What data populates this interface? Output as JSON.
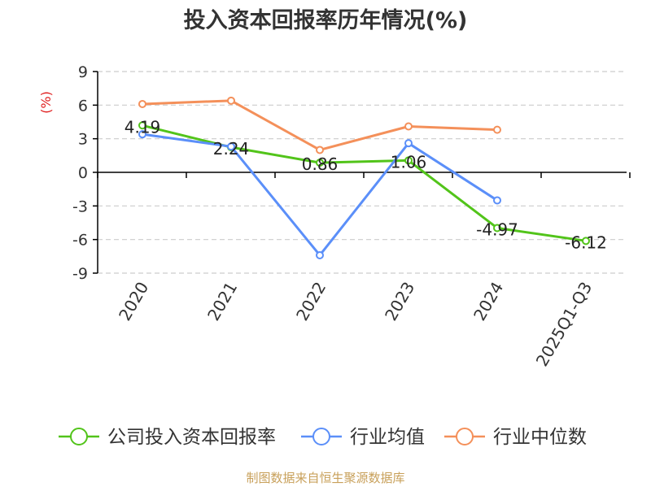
{
  "chart_data": {
    "type": "line",
    "title": "投入资本回报率历年情况(%)",
    "ylabel": "(%)",
    "categories": [
      "2020",
      "2021",
      "2022",
      "2023",
      "2024",
      "2025Q1-Q3"
    ],
    "ylim": [
      -9,
      9
    ],
    "yticks": [
      9,
      6,
      3,
      0,
      -3,
      -6,
      -9
    ],
    "ytick_labels": [
      "9",
      "6",
      "3",
      "0",
      "-3",
      "-6",
      "-9"
    ],
    "grid": true,
    "legend_position": "bottom",
    "series": [
      {
        "name": "公司投入资本回报率",
        "color": "#52c41a",
        "values": [
          4.19,
          2.24,
          0.86,
          1.06,
          -4.97,
          -6.12
        ],
        "labels": [
          "4.19",
          "2.24",
          "0.86",
          "1.06",
          "-4.97",
          "-6.12"
        ]
      },
      {
        "name": "行业均值",
        "color": "#5b8ff9",
        "values": [
          3.4,
          2.3,
          -7.4,
          2.6,
          -2.5,
          null
        ]
      },
      {
        "name": "行业中位数",
        "color": "#f4905a",
        "values": [
          6.1,
          6.4,
          2.0,
          4.1,
          3.8,
          null
        ]
      }
    ]
  },
  "footer": {
    "source_text": "制图数据来自恒生聚源数据库"
  },
  "colors": {
    "ylabel": "#e02020",
    "axis": "#000000",
    "grid": "#cccccc",
    "footer": "#c8a05a"
  }
}
